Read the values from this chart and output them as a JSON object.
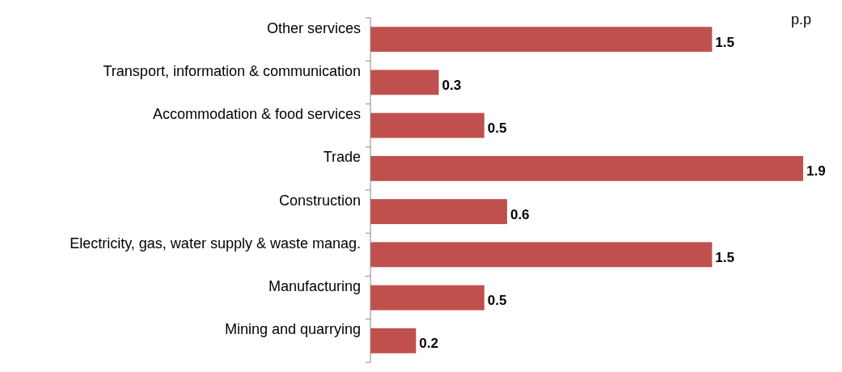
{
  "chart_data": {
    "type": "bar",
    "orientation": "horizontal",
    "xlabel": "p.p",
    "categories": [
      "Other services",
      "Transport, information & communication",
      "Accommodation & food services",
      "Trade",
      "Construction",
      "Electricity, gas, water supply & waste manag.",
      "Manufacturing",
      "Mining and quarrying"
    ],
    "values": [
      1.5,
      0.3,
      0.5,
      1.9,
      0.6,
      1.5,
      0.5,
      0.2
    ],
    "color": "#c0504d",
    "xlim": [
      0,
      1.9
    ],
    "data_labels": true
  }
}
